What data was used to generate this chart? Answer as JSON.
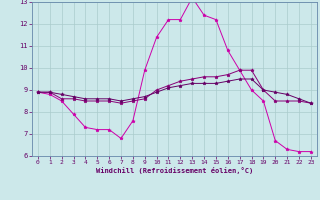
{
  "xlabel": "Windchill (Refroidissement éolien,°C)",
  "bg_color": "#cce8ea",
  "grid_color": "#aacccc",
  "line_color1": "#cc00aa",
  "line_color2": "#880077",
  "line_color3": "#660066",
  "xlim": [
    -0.5,
    23.5
  ],
  "ylim": [
    6,
    13
  ],
  "yticks": [
    6,
    7,
    8,
    9,
    10,
    11,
    12,
    13
  ],
  "xticks": [
    0,
    1,
    2,
    3,
    4,
    5,
    6,
    7,
    8,
    9,
    10,
    11,
    12,
    13,
    14,
    15,
    16,
    17,
    18,
    19,
    20,
    21,
    22,
    23
  ],
  "line1_x": [
    0,
    1,
    2,
    3,
    4,
    5,
    6,
    7,
    8,
    9,
    10,
    11,
    12,
    13,
    14,
    15,
    16,
    17,
    18,
    19,
    20,
    21,
    22,
    23
  ],
  "line1_y": [
    8.9,
    8.8,
    8.5,
    7.9,
    7.3,
    7.2,
    7.2,
    6.8,
    7.6,
    9.9,
    11.4,
    12.2,
    12.2,
    13.2,
    12.4,
    12.2,
    10.8,
    9.9,
    9.0,
    8.5,
    6.7,
    6.3,
    6.2,
    6.2
  ],
  "line2_x": [
    0,
    1,
    2,
    3,
    4,
    5,
    6,
    7,
    8,
    9,
    10,
    11,
    12,
    13,
    14,
    15,
    16,
    17,
    18,
    19,
    20,
    21,
    22,
    23
  ],
  "line2_y": [
    8.9,
    8.9,
    8.6,
    8.6,
    8.5,
    8.5,
    8.5,
    8.4,
    8.5,
    8.6,
    9.0,
    9.2,
    9.4,
    9.5,
    9.6,
    9.6,
    9.7,
    9.9,
    9.9,
    9.0,
    8.5,
    8.5,
    8.5,
    8.4
  ],
  "line3_x": [
    0,
    1,
    2,
    3,
    4,
    5,
    6,
    7,
    8,
    9,
    10,
    11,
    12,
    13,
    14,
    15,
    16,
    17,
    18,
    19,
    20,
    21,
    22,
    23
  ],
  "line3_y": [
    8.9,
    8.9,
    8.8,
    8.7,
    8.6,
    8.6,
    8.6,
    8.5,
    8.6,
    8.7,
    8.9,
    9.1,
    9.2,
    9.3,
    9.3,
    9.3,
    9.4,
    9.5,
    9.5,
    9.0,
    8.9,
    8.8,
    8.6,
    8.4
  ]
}
